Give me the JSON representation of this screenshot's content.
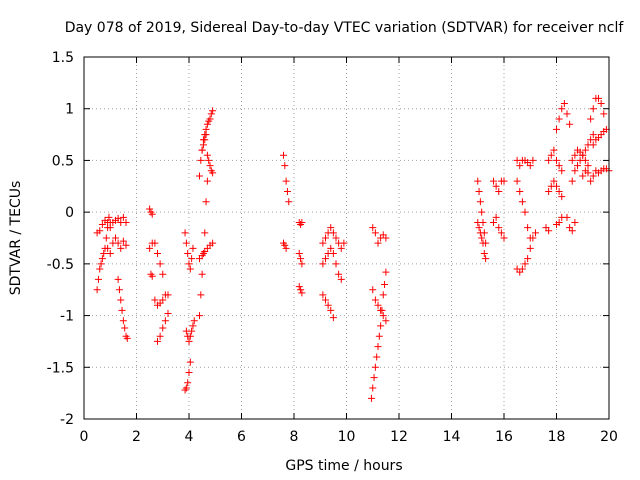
{
  "chart_data": {
    "type": "scatter",
    "title": "Day 078 of 2019, Sidereal Day-to-day VTEC variation (SDTVAR) for receiver nclf",
    "xlabel": "GPS time / hours",
    "ylabel": "SDTVAR / TECUs",
    "xlim": [
      0,
      20
    ],
    "ylim": [
      -2,
      1.5
    ],
    "xticks": [
      0,
      2,
      4,
      6,
      8,
      10,
      12,
      14,
      16,
      18,
      20
    ],
    "yticks": [
      -2,
      -1.5,
      -1,
      -0.5,
      0,
      0.5,
      1,
      1.5
    ],
    "xtick_labels": [
      "0",
      "2",
      "4",
      "6",
      "8",
      "10",
      "12",
      "14",
      "16",
      "18",
      "20"
    ],
    "ytick_labels": [
      "-2",
      "-1.5",
      "-1",
      "-0.5",
      "0",
      "0.5",
      "1",
      "1.5"
    ],
    "grid": true,
    "marker": "+",
    "color": "#ff0000",
    "series": [
      {
        "name": "s1",
        "x": [
          0.5,
          0.55,
          0.6,
          0.65,
          0.7,
          0.75,
          0.8,
          0.85,
          0.9,
          0.95,
          1.0
        ],
        "y": [
          -0.75,
          -0.65,
          -0.55,
          -0.5,
          -0.45,
          -0.4,
          -0.35,
          -0.25,
          -0.15,
          -0.05,
          -0.1
        ]
      },
      {
        "name": "s2",
        "x": [
          0.5,
          0.6,
          0.7,
          0.8,
          0.9,
          1.0,
          1.1,
          1.2,
          1.3,
          1.4,
          1.5,
          1.6
        ],
        "y": [
          -0.2,
          -0.18,
          -0.12,
          -0.08,
          -0.1,
          -0.15,
          -0.1,
          -0.08,
          -0.06,
          -0.1,
          -0.05,
          -0.1
        ]
      },
      {
        "name": "s3",
        "x": [
          0.9,
          1.0,
          1.1,
          1.2,
          1.3,
          1.4,
          1.5,
          1.6
        ],
        "y": [
          -0.35,
          -0.4,
          -0.3,
          -0.25,
          -0.3,
          -0.35,
          -0.28,
          -0.32
        ]
      },
      {
        "name": "s4",
        "x": [
          1.3,
          1.35,
          1.4,
          1.45,
          1.5,
          1.55,
          1.6,
          1.65
        ],
        "y": [
          -0.65,
          -0.75,
          -0.85,
          -0.95,
          -1.05,
          -1.12,
          -1.2,
          -1.22
        ]
      },
      {
        "name": "s5",
        "x": [
          2.5,
          2.55,
          2.6
        ],
        "y": [
          0.03,
          0.0,
          -0.02
        ]
      },
      {
        "name": "s6",
        "x": [
          2.5,
          2.6,
          2.7,
          2.8,
          2.9,
          3.0
        ],
        "y": [
          -0.35,
          -0.3,
          -0.3,
          -0.4,
          -0.5,
          -0.6
        ]
      },
      {
        "name": "s7",
        "x": [
          2.55,
          2.6
        ],
        "y": [
          -0.6,
          -0.62
        ]
      },
      {
        "name": "s8",
        "x": [
          2.7,
          2.8,
          2.9,
          3.0,
          3.1,
          3.2
        ],
        "y": [
          -0.85,
          -0.9,
          -0.88,
          -0.85,
          -0.8,
          -0.8
        ]
      },
      {
        "name": "s9",
        "x": [
          2.8,
          2.9,
          3.0,
          3.1,
          3.2
        ],
        "y": [
          -1.25,
          -1.2,
          -1.12,
          -1.05,
          -0.98
        ]
      },
      {
        "name": "s10",
        "x": [
          3.85,
          3.9,
          3.95,
          4.0,
          4.05
        ],
        "y": [
          -1.72,
          -1.7,
          -1.65,
          -1.55,
          -1.45
        ]
      },
      {
        "name": "s11",
        "x": [
          3.9,
          3.95,
          4.0,
          4.05,
          4.1,
          4.15,
          4.2
        ],
        "y": [
          -1.15,
          -1.2,
          -1.25,
          -1.2,
          -1.15,
          -1.1,
          -1.05
        ]
      },
      {
        "name": "s12",
        "x": [
          3.85,
          3.9,
          3.95,
          4.0,
          4.05,
          4.1,
          4.15
        ],
        "y": [
          -0.2,
          -0.3,
          -0.4,
          -0.5,
          -0.55,
          -0.45,
          -0.35
        ]
      },
      {
        "name": "s13",
        "x": [
          4.4,
          4.45,
          4.5,
          4.55,
          4.6,
          4.65,
          4.7
        ],
        "y": [
          -1.0,
          -0.8,
          -0.6,
          -0.4,
          -0.2,
          0.1,
          0.3
        ]
      },
      {
        "name": "s14",
        "x": [
          4.4,
          4.45,
          4.5,
          4.55,
          4.6,
          4.65,
          4.7,
          4.75,
          4.8,
          4.85,
          4.9
        ],
        "y": [
          0.35,
          0.5,
          0.6,
          0.7,
          0.75,
          0.8,
          0.85,
          0.88,
          0.9,
          0.95,
          0.98
        ]
      },
      {
        "name": "s15",
        "x": [
          4.5,
          4.55,
          4.6,
          4.65,
          4.7,
          4.75,
          4.8,
          4.85,
          4.9
        ],
        "y": [
          0.6,
          0.65,
          0.7,
          0.75,
          0.55,
          0.5,
          0.45,
          0.4,
          0.38
        ]
      },
      {
        "name": "s16",
        "x": [
          4.4,
          4.5,
          4.6,
          4.7,
          4.8,
          4.9
        ],
        "y": [
          -0.45,
          -0.42,
          -0.38,
          -0.35,
          -0.32,
          -0.3
        ]
      },
      {
        "name": "s17",
        "x": [
          7.6,
          7.65,
          7.7,
          7.75,
          7.8
        ],
        "y": [
          0.55,
          0.45,
          0.3,
          0.2,
          0.1
        ]
      },
      {
        "name": "s18",
        "x": [
          7.6,
          7.65,
          7.7
        ],
        "y": [
          -0.3,
          -0.32,
          -0.35
        ]
      },
      {
        "name": "s19",
        "x": [
          8.2,
          8.25,
          8.3
        ],
        "y": [
          -0.1,
          -0.12,
          -0.1
        ]
      },
      {
        "name": "s20",
        "x": [
          8.2,
          8.25,
          8.3
        ],
        "y": [
          -0.4,
          -0.45,
          -0.5
        ]
      },
      {
        "name": "s21",
        "x": [
          8.2,
          8.25,
          8.3
        ],
        "y": [
          -0.72,
          -0.75,
          -0.78
        ]
      },
      {
        "name": "s22",
        "x": [
          9.1,
          9.2,
          9.3,
          9.4,
          9.5,
          9.6,
          9.7,
          9.8,
          9.9
        ],
        "y": [
          -0.3,
          -0.25,
          -0.2,
          -0.15,
          -0.2,
          -0.25,
          -0.3,
          -0.35,
          -0.3
        ]
      },
      {
        "name": "s23",
        "x": [
          9.1,
          9.2,
          9.3,
          9.4,
          9.5,
          9.6,
          9.7,
          9.8
        ],
        "y": [
          -0.5,
          -0.45,
          -0.4,
          -0.35,
          -0.4,
          -0.5,
          -0.6,
          -0.65
        ]
      },
      {
        "name": "s24",
        "x": [
          9.1,
          9.2,
          9.3,
          9.4,
          9.5
        ],
        "y": [
          -0.8,
          -0.85,
          -0.9,
          -0.95,
          -1.02
        ]
      },
      {
        "name": "s25",
        "x": [
          10.95,
          11.0,
          11.05,
          11.1,
          11.15,
          11.2,
          11.25,
          11.3,
          11.35,
          11.4,
          11.45,
          11.5
        ],
        "y": [
          -1.8,
          -1.7,
          -1.6,
          -1.5,
          -1.4,
          -1.3,
          -1.2,
          -1.1,
          -0.95,
          -0.8,
          -0.7,
          -0.58
        ]
      },
      {
        "name": "s26",
        "x": [
          11.0,
          11.1,
          11.2,
          11.3,
          11.4,
          11.5
        ],
        "y": [
          -0.75,
          -0.85,
          -0.9,
          -0.95,
          -1.0,
          -1.05
        ]
      },
      {
        "name": "s27",
        "x": [
          11.0,
          11.1,
          11.2,
          11.3,
          11.4,
          11.5
        ],
        "y": [
          -0.15,
          -0.2,
          -0.3,
          -0.25,
          -0.22,
          -0.25
        ]
      },
      {
        "name": "s28",
        "x": [
          15.0,
          15.05,
          15.1,
          15.15,
          15.2,
          15.25,
          15.3
        ],
        "y": [
          -0.1,
          -0.15,
          -0.2,
          -0.25,
          -0.3,
          -0.4,
          -0.45
        ]
      },
      {
        "name": "s29",
        "x": [
          15.0,
          15.05,
          15.1,
          15.15,
          15.2,
          15.25,
          15.3
        ],
        "y": [
          0.3,
          0.2,
          0.1,
          0.0,
          -0.1,
          -0.2,
          -0.3
        ]
      },
      {
        "name": "s30",
        "x": [
          15.6,
          15.7,
          15.8,
          15.9,
          16.0
        ],
        "y": [
          0.3,
          0.25,
          0.2,
          0.3,
          0.3
        ]
      },
      {
        "name": "s31",
        "x": [
          15.6,
          15.7,
          15.8,
          15.9,
          16.0
        ],
        "y": [
          -0.1,
          -0.05,
          -0.15,
          -0.2,
          -0.25
        ]
      },
      {
        "name": "s32",
        "x": [
          16.5,
          16.6,
          16.7,
          16.8,
          16.9,
          17.0,
          17.1
        ],
        "y": [
          0.5,
          0.45,
          0.5,
          0.5,
          0.48,
          0.45,
          0.5
        ]
      },
      {
        "name": "s33",
        "x": [
          16.5,
          16.6,
          16.7,
          16.8,
          16.9,
          17.0
        ],
        "y": [
          0.3,
          0.2,
          0.1,
          0.0,
          -0.15,
          -0.25
        ]
      },
      {
        "name": "s34",
        "x": [
          16.5,
          16.6,
          16.7,
          16.8,
          16.9,
          17.0,
          17.1,
          17.2
        ],
        "y": [
          -0.55,
          -0.58,
          -0.55,
          -0.5,
          -0.45,
          -0.35,
          -0.25,
          -0.2
        ]
      },
      {
        "name": "s35",
        "x": [
          17.7,
          17.8,
          17.9,
          18.0,
          18.1,
          18.2
        ],
        "y": [
          0.5,
          0.55,
          0.6,
          0.5,
          0.45,
          0.4
        ]
      },
      {
        "name": "s36",
        "x": [
          17.7,
          17.8,
          17.9,
          18.0,
          18.1,
          18.2
        ],
        "y": [
          0.2,
          0.25,
          0.3,
          0.25,
          0.2,
          0.15
        ]
      },
      {
        "name": "s37",
        "x": [
          18.0,
          18.1,
          18.2,
          18.3,
          18.4,
          18.5
        ],
        "y": [
          0.8,
          0.9,
          1.0,
          1.05,
          0.95,
          0.85
        ]
      },
      {
        "name": "s38",
        "x": [
          17.6,
          17.7,
          18.0,
          18.1,
          18.2
        ],
        "y": [
          -0.15,
          -0.18,
          -0.12,
          -0.1,
          -0.05
        ]
      },
      {
        "name": "s39",
        "x": [
          18.4,
          18.5,
          18.6,
          18.7
        ],
        "y": [
          -0.05,
          -0.15,
          -0.18,
          -0.1
        ]
      },
      {
        "name": "s40",
        "x": [
          18.6,
          18.7,
          18.8,
          18.9,
          19.0,
          19.1,
          19.2,
          19.3,
          19.4
        ],
        "y": [
          0.3,
          0.4,
          0.45,
          0.5,
          0.55,
          0.6,
          0.65,
          0.7,
          0.75
        ]
      },
      {
        "name": "s41",
        "x": [
          18.6,
          18.7,
          18.8,
          18.9,
          19.0,
          19.1,
          19.2
        ],
        "y": [
          0.5,
          0.55,
          0.6,
          0.58,
          0.55,
          0.5,
          0.45
        ]
      },
      {
        "name": "s42",
        "x": [
          19.3,
          19.4,
          19.5,
          19.6,
          19.7,
          19.8
        ],
        "y": [
          0.9,
          1.0,
          1.1,
          1.1,
          1.05,
          0.95
        ]
      },
      {
        "name": "s43",
        "x": [
          19.4,
          19.5,
          19.6,
          19.7,
          19.8,
          19.9
        ],
        "y": [
          0.65,
          0.7,
          0.72,
          0.75,
          0.78,
          0.8
        ]
      },
      {
        "name": "s44",
        "x": [
          19.0,
          19.1,
          19.2,
          19.3,
          19.4,
          19.5,
          19.6,
          19.7,
          19.8,
          19.9,
          20.0
        ],
        "y": [
          0.35,
          0.4,
          0.38,
          0.3,
          0.35,
          0.4,
          0.38,
          0.4,
          0.42,
          0.42,
          0.4
        ]
      }
    ]
  }
}
